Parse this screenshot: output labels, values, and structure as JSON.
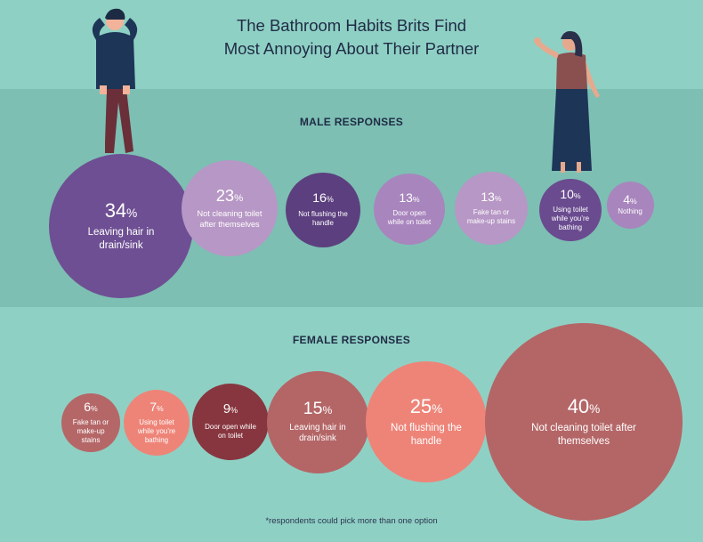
{
  "title_line1": "The Bathroom Habits Brits Find",
  "title_line2": "Most Annoying About Their Partner",
  "footnote": "*respondents could pick more than one option",
  "chart_data": [
    {
      "type": "bubble",
      "title": "MALE RESPONSES",
      "unit": "%",
      "items": [
        {
          "value": 34,
          "label": "Leaving hair in drain/sink",
          "color": "#6e4f93"
        },
        {
          "value": 23,
          "label": "Not cleaning toilet after themselves",
          "color": "#b797c5"
        },
        {
          "value": 16,
          "label": "Not flushing the handle",
          "color": "#5c3f7e"
        },
        {
          "value": 13,
          "label": "Door open while on toilet",
          "color": "#a885bd"
        },
        {
          "value": 13,
          "label": "Fake tan or make-up stains",
          "color": "#b797c5"
        },
        {
          "value": 10,
          "label": "Using toilet while you’re bathing",
          "color": "#6a4b8f"
        },
        {
          "value": 4,
          "label": "Nothing",
          "color": "#a885bd"
        }
      ]
    },
    {
      "type": "bubble",
      "title": "FEMALE RESPONSES",
      "unit": "%",
      "items": [
        {
          "value": 6,
          "label": "Fake tan or make-up stains",
          "color": "#b56768"
        },
        {
          "value": 7,
          "label": "Using toilet while you’re bathing",
          "color": "#ee8478"
        },
        {
          "value": 9,
          "label": "Door open while on toilet",
          "color": "#87363f"
        },
        {
          "value": 15,
          "label": "Leaving hair in drain/sink",
          "color": "#b46667"
        },
        {
          "value": 25,
          "label": "Not flushing the handle",
          "color": "#ee8478"
        },
        {
          "value": 40,
          "label": "Not cleaning toilet after themselves",
          "color": "#b46667"
        }
      ]
    }
  ]
}
